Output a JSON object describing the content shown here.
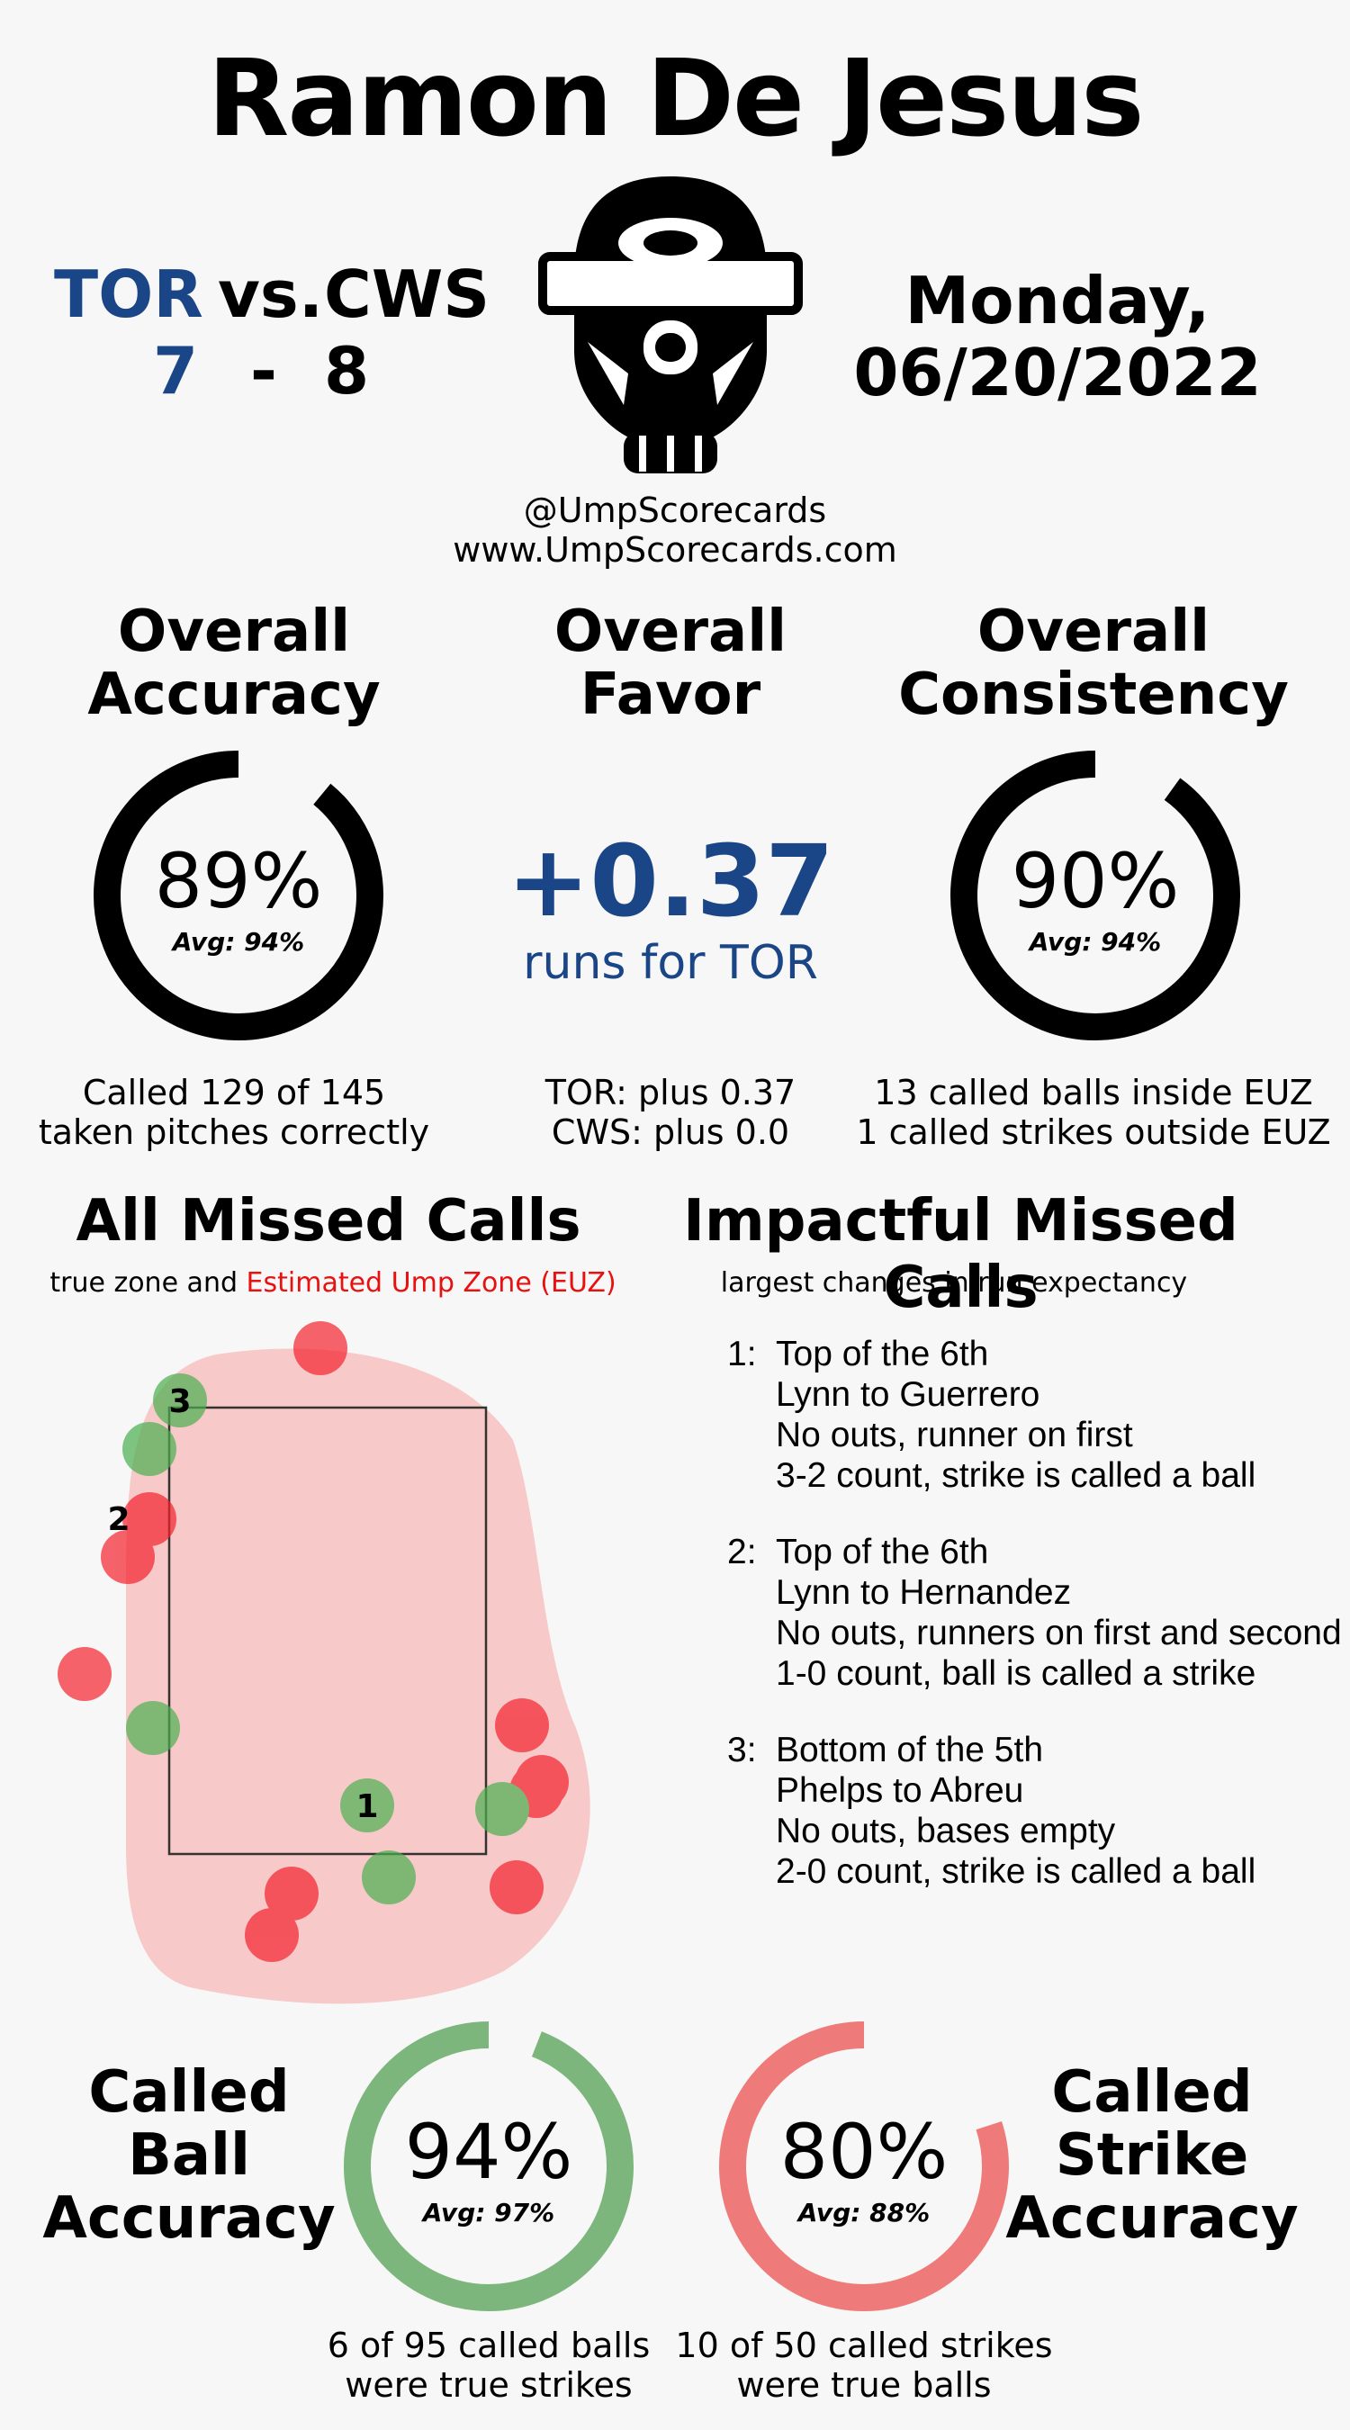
{
  "header": {
    "umpire_name": "Ramon De Jesus",
    "away_team": "TOR",
    "vs_label": "vs.",
    "home_team": "CWS",
    "away_score": "7",
    "score_separator": "-",
    "home_score": "8",
    "day": "Monday,",
    "date": "06/20/2022",
    "twitter": "@UmpScorecards",
    "website": "www.UmpScorecards.com"
  },
  "colors": {
    "blue": "#1a4586",
    "red": "#e8110f",
    "green": "#7cb67c",
    "strike_ring": "#ef7a7a",
    "zone_fill": "#f7c9c9"
  },
  "accuracy": {
    "title_line1": "Overall",
    "title_line2": "Accuracy",
    "value": "89%",
    "fraction": 0.89,
    "avg": "Avg: 94%",
    "desc_line1": "Called 129 of 145",
    "desc_line2": "taken pitches correctly"
  },
  "favor": {
    "title_line1": "Overall",
    "title_line2": "Favor",
    "value": "+0.37",
    "sub": "runs for TOR",
    "desc_line1": "TOR: plus 0.37",
    "desc_line2": "CWS: plus 0.0"
  },
  "consistency": {
    "title_line1": "Overall",
    "title_line2": "Consistency",
    "value": "90%",
    "fraction": 0.9,
    "avg": "Avg: 94%",
    "desc_line1": "13 called balls inside EUZ",
    "desc_line2": "1 called strikes outside EUZ"
  },
  "missed_calls": {
    "title": "All Missed Calls",
    "subtitle_plain": "true zone and",
    "subtitle_red": "Estimated Ump Zone (EUZ)",
    "labels": [
      "1",
      "2",
      "3"
    ]
  },
  "impactful": {
    "title": "Impactful Missed Calls",
    "subtitle": "largest changes in run expectancy",
    "items": [
      {
        "num": "1:",
        "line1": "Top of the 6th",
        "line2": "Lynn to Guerrero",
        "line3": "No outs, runner on first",
        "line4": "3-2 count, strike is called a ball"
      },
      {
        "num": "2:",
        "line1": "Top of the 6th",
        "line2": "Lynn to Hernandez",
        "line3": "No outs, runners on first and second",
        "line4": "1-0 count, ball is called a strike"
      },
      {
        "num": "3:",
        "line1": "Bottom of the 5th",
        "line2": "Phelps to Abreu",
        "line3": "No outs, bases empty",
        "line4": "2-0 count, strike is called a ball"
      }
    ]
  },
  "ball_accuracy": {
    "title_line1": "Called",
    "title_line2": "Ball",
    "title_line3": "Accuracy",
    "value": "94%",
    "fraction": 0.94,
    "avg": "Avg: 97%",
    "desc_line1": "6 of 95 called balls",
    "desc_line2": "were true strikes"
  },
  "strike_accuracy": {
    "title_line1": "Called",
    "title_line2": "Strike",
    "title_line3": "Accuracy",
    "value": "80%",
    "fraction": 0.8,
    "avg": "Avg: 88%",
    "desc_line1": "10 of 50 called strikes",
    "desc_line2": "were true balls"
  }
}
